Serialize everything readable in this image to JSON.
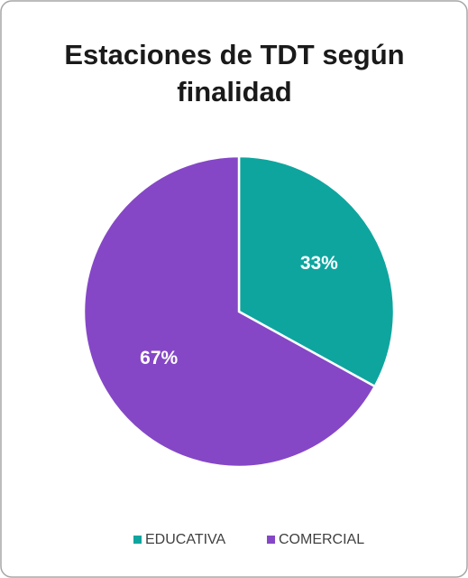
{
  "chart_data": {
    "type": "pie",
    "title": "Estaciones de TDT según finalidad",
    "categories": [
      "EDUCATIVA",
      "COMERCIAL"
    ],
    "values": [
      33,
      67
    ],
    "value_labels": [
      "33%",
      "67%"
    ],
    "colors": [
      "#0ea59f",
      "#8547c6"
    ]
  }
}
